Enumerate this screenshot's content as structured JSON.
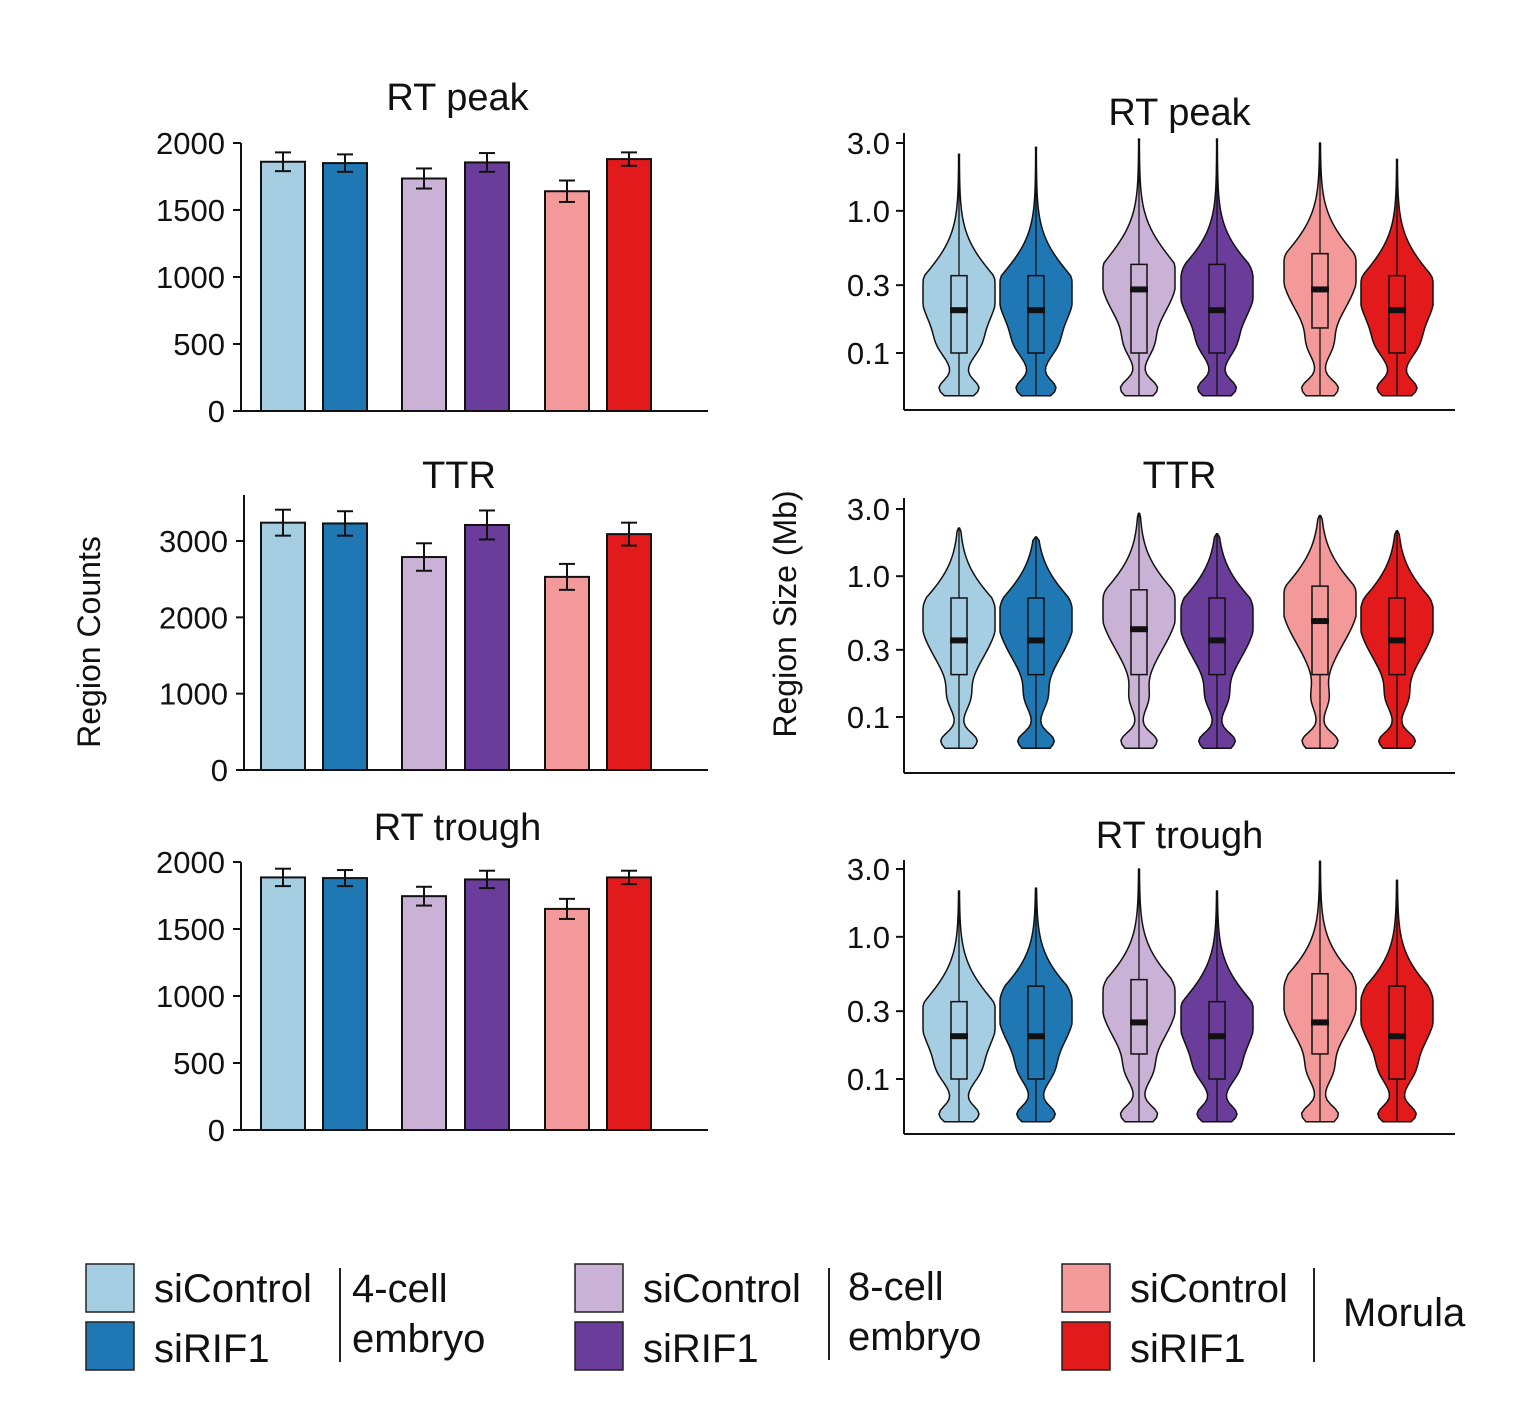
{
  "figure": {
    "left_ylabel": "Region Counts",
    "right_ylabel": "Region Size (Mb)"
  },
  "legend": {
    "groups": [
      {
        "items": [
          {
            "label": "siControl",
            "color": "#a6cee3"
          },
          {
            "label": "siRIF1",
            "color": "#1f78b4"
          }
        ],
        "group_label_lines": [
          "4-cell",
          "embryo"
        ]
      },
      {
        "items": [
          {
            "label": "siControl",
            "color": "#cab2d6"
          },
          {
            "label": "siRIF1",
            "color": "#6a3d9a"
          }
        ],
        "group_label_lines": [
          "8-cell",
          "embryo"
        ]
      },
      {
        "items": [
          {
            "label": "siControl",
            "color": "#f4999a"
          },
          {
            "label": "siRIF1",
            "color": "#e31a1c"
          }
        ],
        "group_label_lines": [
          "Morula"
        ]
      }
    ]
  },
  "chart_data": [
    {
      "type": "bar",
      "title": "RT peak",
      "ylabel": "Region Counts",
      "ylim": [
        0,
        2000
      ],
      "yticks": [
        0,
        500,
        1000,
        1500,
        2000
      ],
      "categories": [
        "4-cell siControl",
        "4-cell siRIF1",
        "8-cell siControl",
        "8-cell siRIF1",
        "Morula siControl",
        "Morula siRIF1"
      ],
      "values": [
        1860,
        1850,
        1735,
        1855,
        1640,
        1880
      ],
      "errors": [
        70,
        65,
        75,
        70,
        80,
        50
      ],
      "colors": [
        "#a6cee3",
        "#1f78b4",
        "#cab2d6",
        "#6a3d9a",
        "#f4999a",
        "#e31a1c"
      ]
    },
    {
      "type": "bar",
      "title": "TTR",
      "ylabel": "Region Counts",
      "ylim": [
        0,
        3600
      ],
      "yticks": [
        0,
        1000,
        2000,
        3000
      ],
      "categories": [
        "4-cell siControl",
        "4-cell siRIF1",
        "8-cell siControl",
        "8-cell siRIF1",
        "Morula siControl",
        "Morula siRIF1"
      ],
      "values": [
        3240,
        3230,
        2790,
        3210,
        2530,
        3090
      ],
      "errors": [
        170,
        160,
        180,
        190,
        170,
        150
      ],
      "colors": [
        "#a6cee3",
        "#1f78b4",
        "#cab2d6",
        "#6a3d9a",
        "#f4999a",
        "#e31a1c"
      ]
    },
    {
      "type": "bar",
      "title": "RT trough",
      "ylabel": "Region Counts",
      "ylim": [
        0,
        2000
      ],
      "yticks": [
        0,
        500,
        1000,
        1500,
        2000
      ],
      "categories": [
        "4-cell siControl",
        "4-cell siRIF1",
        "8-cell siControl",
        "8-cell siRIF1",
        "Morula siControl",
        "Morula siRIF1"
      ],
      "values": [
        1885,
        1880,
        1745,
        1870,
        1650,
        1885
      ],
      "errors": [
        65,
        60,
        70,
        65,
        75,
        50
      ],
      "colors": [
        "#a6cee3",
        "#1f78b4",
        "#cab2d6",
        "#6a3d9a",
        "#f4999a",
        "#e31a1c"
      ]
    },
    {
      "type": "violin",
      "title": "RT peak",
      "ylabel": "Region Size (Mb)",
      "yscale": "log",
      "ylim": [
        0.04,
        3.5
      ],
      "yticks": [
        0.1,
        0.3,
        1.0,
        3.0
      ],
      "ytick_labels": [
        "0.1",
        "0.3",
        "1.0",
        "3.0"
      ],
      "categories": [
        "4-cell siControl",
        "4-cell siRIF1",
        "8-cell siControl",
        "8-cell siRIF1",
        "Morula siControl",
        "Morula siRIF1"
      ],
      "colors": [
        "#a6cee3",
        "#1f78b4",
        "#cab2d6",
        "#6a3d9a",
        "#f4999a",
        "#e31a1c"
      ],
      "median": [
        0.2,
        0.2,
        0.28,
        0.2,
        0.28,
        0.2
      ],
      "q1": [
        0.1,
        0.1,
        0.1,
        0.1,
        0.15,
        0.1
      ],
      "q3": [
        0.35,
        0.35,
        0.42,
        0.42,
        0.5,
        0.35
      ],
      "min": [
        0.05,
        0.05,
        0.05,
        0.05,
        0.05,
        0.05
      ],
      "max": [
        2.5,
        2.8,
        3.2,
        3.2,
        3.0,
        2.3
      ]
    },
    {
      "type": "violin",
      "title": "TTR",
      "ylabel": "Region Size (Mb)",
      "yscale": "log",
      "ylim": [
        0.04,
        3.5
      ],
      "yticks": [
        0.1,
        0.3,
        1.0,
        3.0
      ],
      "ytick_labels": [
        "0.1",
        "0.3",
        "1.0",
        "3.0"
      ],
      "categories": [
        "4-cell siControl",
        "4-cell siRIF1",
        "8-cell siControl",
        "8-cell siRIF1",
        "Morula siControl",
        "Morula siRIF1"
      ],
      "colors": [
        "#a6cee3",
        "#1f78b4",
        "#cab2d6",
        "#6a3d9a",
        "#f4999a",
        "#e31a1c"
      ],
      "median": [
        0.35,
        0.35,
        0.42,
        0.35,
        0.48,
        0.35
      ],
      "q1": [
        0.2,
        0.2,
        0.2,
        0.2,
        0.2,
        0.2
      ],
      "q3": [
        0.7,
        0.7,
        0.8,
        0.7,
        0.85,
        0.7
      ],
      "min": [
        0.06,
        0.06,
        0.06,
        0.06,
        0.06,
        0.06
      ],
      "max": [
        2.2,
        1.9,
        2.8,
        2.0,
        2.7,
        2.1
      ]
    },
    {
      "type": "violin",
      "title": "RT trough",
      "ylabel": "Region Size (Mb)",
      "yscale": "log",
      "ylim": [
        0.04,
        3.5
      ],
      "yticks": [
        0.1,
        0.3,
        1.0,
        3.0
      ],
      "ytick_labels": [
        "0.1",
        "0.3",
        "1.0",
        "3.0"
      ],
      "categories": [
        "4-cell siControl",
        "4-cell siRIF1",
        "8-cell siControl",
        "8-cell siRIF1",
        "Morula siControl",
        "Morula siRIF1"
      ],
      "colors": [
        "#a6cee3",
        "#1f78b4",
        "#cab2d6",
        "#6a3d9a",
        "#f4999a",
        "#e31a1c"
      ],
      "median": [
        0.2,
        0.2,
        0.25,
        0.2,
        0.25,
        0.2
      ],
      "q1": [
        0.1,
        0.1,
        0.15,
        0.1,
        0.15,
        0.1
      ],
      "q3": [
        0.35,
        0.45,
        0.5,
        0.35,
        0.55,
        0.45
      ],
      "min": [
        0.05,
        0.05,
        0.05,
        0.05,
        0.05,
        0.05
      ],
      "max": [
        2.1,
        2.2,
        3.0,
        2.1,
        3.4,
        2.5
      ]
    }
  ]
}
